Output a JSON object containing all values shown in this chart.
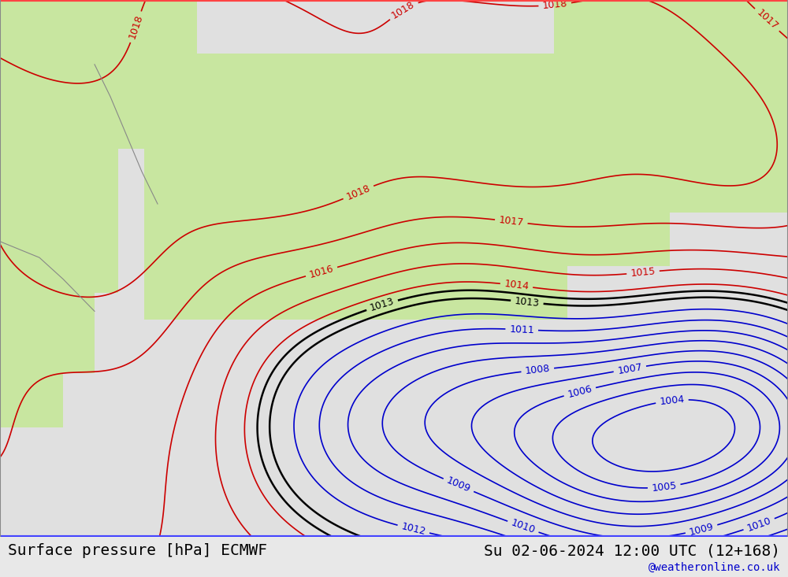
{
  "title_left": "Surface pressure [hPa] ECMWF",
  "title_right": "Su 02-06-2024 12:00 UTC (12+168)",
  "watermark": "@weatheronline.co.uk",
  "bg_color": "#e8e8e8",
  "land_color": "#c8e6a0",
  "sea_color": "#e0e0e0",
  "contour_color_high": "#cc0000",
  "contour_color_mid": "#000000",
  "contour_color_low": "#0000cc",
  "title_fontsize": 14,
  "watermark_fontsize": 10,
  "label_fontsize": 9,
  "figsize": [
    10.0,
    7.33
  ],
  "dpi": 100,
  "pressure_high_threshold": 1013.5,
  "pressure_low_threshold": 1012.5,
  "border_color_top": "#ff4444",
  "border_color_bottom": "#4444ff"
}
